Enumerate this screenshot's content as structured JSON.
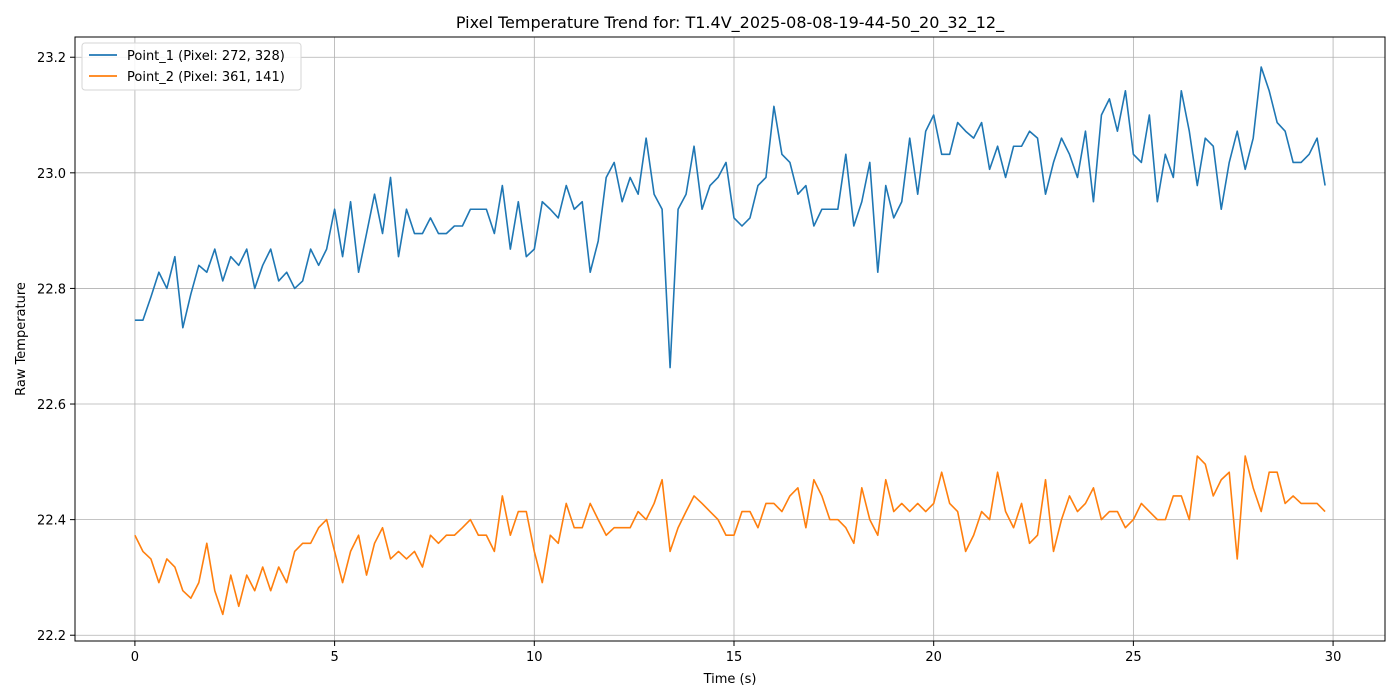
{
  "chart_data": {
    "type": "line",
    "title": "Pixel Temperature Trend for: T1.4V_2025-08-08-19-44-50_20_32_12_",
    "xlabel": "Time (s)",
    "ylabel": "Raw Temperature",
    "xlim": [
      -1.5,
      31.3
    ],
    "ylim": [
      22.19,
      23.235
    ],
    "xticks": [
      0,
      5,
      10,
      15,
      20,
      25,
      30
    ],
    "yticks": [
      22.2,
      22.4,
      22.6,
      22.8,
      23.0,
      23.2
    ],
    "xtick_labels": [
      "0",
      "5",
      "10",
      "15",
      "20",
      "25",
      "30"
    ],
    "ytick_labels": [
      "22.2",
      "22.4",
      "22.6",
      "22.8",
      "23.0",
      "23.2"
    ],
    "grid": true,
    "legend_position": "upper left",
    "series": [
      {
        "name": "Point_1 (Pixel: 272, 328)",
        "color": "#1f77b4",
        "x": [
          0.0,
          0.2,
          0.4,
          0.6,
          0.8,
          1.0,
          1.2,
          1.4,
          1.6,
          1.8,
          2.0,
          2.2,
          2.4,
          2.6,
          2.8,
          3.0,
          3.2,
          3.4,
          3.6,
          3.8,
          4.0,
          4.2,
          4.4,
          4.6,
          4.8,
          5.0,
          5.2,
          5.4,
          5.6,
          5.8,
          6.0,
          6.2,
          6.4,
          6.6,
          6.8,
          7.0,
          7.2,
          7.4,
          7.6,
          7.8,
          8.0,
          8.2,
          8.4,
          8.6,
          8.8,
          9.0,
          9.2,
          9.4,
          9.6,
          9.8,
          10.0,
          10.2,
          10.4,
          10.6,
          10.8,
          11.0,
          11.2,
          11.4,
          11.6,
          11.8,
          12.0,
          12.2,
          12.4,
          12.6,
          12.8,
          13.0,
          13.2,
          13.4,
          13.6,
          13.8,
          14.0,
          14.2,
          14.4,
          14.6,
          14.8,
          15.0,
          15.2,
          15.4,
          15.6,
          15.8,
          16.0,
          16.2,
          16.4,
          16.6,
          16.8,
          17.0,
          17.2,
          17.4,
          17.6,
          17.8,
          18.0,
          18.2,
          18.4,
          18.6,
          18.8,
          19.0,
          19.2,
          19.4,
          19.6,
          19.8,
          20.0,
          20.2,
          20.4,
          20.6,
          20.8,
          21.0,
          21.2,
          21.4,
          21.6,
          21.8,
          22.0,
          22.2,
          22.4,
          22.6,
          22.8,
          23.0,
          23.2,
          23.4,
          23.6,
          23.8,
          24.0,
          24.2,
          24.4,
          24.6,
          24.8,
          25.0,
          25.2,
          25.4,
          25.6,
          25.8,
          26.0,
          26.2,
          26.4,
          26.6,
          26.8,
          27.0,
          27.2,
          27.4,
          27.6,
          27.8,
          28.0,
          28.2,
          28.4,
          28.6,
          28.8,
          29.0,
          29.2,
          29.4,
          29.6,
          29.8
        ],
        "y": [
          22.745,
          22.745,
          22.785,
          22.828,
          22.8,
          22.855,
          22.732,
          22.79,
          22.84,
          22.828,
          22.868,
          22.813,
          22.855,
          22.84,
          22.868,
          22.8,
          22.84,
          22.868,
          22.813,
          22.828,
          22.8,
          22.813,
          22.868,
          22.84,
          22.868,
          22.937,
          22.855,
          22.95,
          22.828,
          22.895,
          22.963,
          22.895,
          22.992,
          22.855,
          22.937,
          22.895,
          22.895,
          22.922,
          22.895,
          22.895,
          22.908,
          22.908,
          22.937,
          22.937,
          22.937,
          22.895,
          22.978,
          22.868,
          22.95,
          22.855,
          22.868,
          22.95,
          22.937,
          22.922,
          22.978,
          22.937,
          22.95,
          22.828,
          22.882,
          22.992,
          23.018,
          22.95,
          22.992,
          22.963,
          23.06,
          22.963,
          22.937,
          22.663,
          22.937,
          22.963,
          23.046,
          22.937,
          22.978,
          22.992,
          23.018,
          22.922,
          22.908,
          22.922,
          22.978,
          22.992,
          23.115,
          23.032,
          23.018,
          22.963,
          22.978,
          22.908,
          22.937,
          22.937,
          22.937,
          23.032,
          22.908,
          22.95,
          23.018,
          22.828,
          22.978,
          22.922,
          22.95,
          23.06,
          22.963,
          23.072,
          23.1,
          23.032,
          23.032,
          23.087,
          23.072,
          23.06,
          23.087,
          23.006,
          23.046,
          22.992,
          23.046,
          23.046,
          23.072,
          23.06,
          22.963,
          23.018,
          23.06,
          23.032,
          22.992,
          23.072,
          22.95,
          23.1,
          23.128,
          23.072,
          23.142,
          23.032,
          23.018,
          23.1,
          22.95,
          23.032,
          22.992,
          23.142,
          23.072,
          22.978,
          23.06,
          23.046,
          22.937,
          23.018,
          23.072,
          23.006,
          23.06,
          23.183,
          23.142,
          23.087,
          23.072,
          23.018,
          23.018,
          23.032,
          23.06,
          22.978
        ]
      },
      {
        "name": "Point_2 (Pixel: 361, 141)",
        "color": "#ff7f0e",
        "x": [
          0.0,
          0.2,
          0.4,
          0.6,
          0.8,
          1.0,
          1.2,
          1.4,
          1.6,
          1.8,
          2.0,
          2.2,
          2.4,
          2.6,
          2.8,
          3.0,
          3.2,
          3.4,
          3.6,
          3.8,
          4.0,
          4.2,
          4.4,
          4.6,
          4.8,
          5.0,
          5.2,
          5.4,
          5.6,
          5.8,
          6.0,
          6.2,
          6.4,
          6.6,
          6.8,
          7.0,
          7.2,
          7.4,
          7.6,
          7.8,
          8.0,
          8.2,
          8.4,
          8.6,
          8.8,
          9.0,
          9.2,
          9.4,
          9.6,
          9.8,
          10.0,
          10.2,
          10.4,
          10.6,
          10.8,
          11.0,
          11.2,
          11.4,
          11.6,
          11.8,
          12.0,
          12.2,
          12.4,
          12.6,
          12.8,
          13.0,
          13.2,
          13.4,
          13.6,
          13.8,
          14.0,
          14.2,
          14.4,
          14.6,
          14.8,
          15.0,
          15.2,
          15.4,
          15.6,
          15.8,
          16.0,
          16.2,
          16.4,
          16.6,
          16.8,
          17.0,
          17.2,
          17.4,
          17.6,
          17.8,
          18.0,
          18.2,
          18.4,
          18.6,
          18.8,
          19.0,
          19.2,
          19.4,
          19.6,
          19.8,
          20.0,
          20.2,
          20.4,
          20.6,
          20.8,
          21.0,
          21.2,
          21.4,
          21.6,
          21.8,
          22.0,
          22.2,
          22.4,
          22.6,
          22.8,
          23.0,
          23.2,
          23.4,
          23.6,
          23.8,
          24.0,
          24.2,
          24.4,
          24.6,
          24.8,
          25.0,
          25.2,
          25.4,
          25.6,
          25.8,
          26.0,
          26.2,
          26.4,
          26.6,
          26.8,
          27.0,
          27.2,
          27.4,
          27.6,
          27.8,
          28.0,
          28.2,
          28.4,
          28.6,
          28.8,
          29.0,
          29.2,
          29.4,
          29.6,
          29.8
        ],
        "y": [
          22.373,
          22.345,
          22.332,
          22.291,
          22.332,
          22.318,
          22.277,
          22.264,
          22.291,
          22.359,
          22.277,
          22.236,
          22.304,
          22.25,
          22.304,
          22.277,
          22.318,
          22.277,
          22.318,
          22.291,
          22.345,
          22.359,
          22.359,
          22.386,
          22.4,
          22.345,
          22.291,
          22.345,
          22.373,
          22.304,
          22.359,
          22.386,
          22.332,
          22.345,
          22.332,
          22.345,
          22.318,
          22.373,
          22.359,
          22.373,
          22.373,
          22.386,
          22.4,
          22.373,
          22.373,
          22.345,
          22.441,
          22.373,
          22.414,
          22.414,
          22.345,
          22.291,
          22.373,
          22.359,
          22.428,
          22.386,
          22.386,
          22.428,
          22.4,
          22.373,
          22.386,
          22.386,
          22.386,
          22.414,
          22.4,
          22.428,
          22.469,
          22.345,
          22.386,
          22.414,
          22.441,
          22.428,
          22.414,
          22.4,
          22.373,
          22.373,
          22.414,
          22.414,
          22.386,
          22.428,
          22.428,
          22.414,
          22.441,
          22.455,
          22.386,
          22.469,
          22.441,
          22.4,
          22.4,
          22.386,
          22.359,
          22.455,
          22.4,
          22.373,
          22.469,
          22.414,
          22.428,
          22.414,
          22.428,
          22.414,
          22.428,
          22.482,
          22.428,
          22.414,
          22.345,
          22.373,
          22.414,
          22.4,
          22.482,
          22.414,
          22.386,
          22.428,
          22.359,
          22.373,
          22.469,
          22.345,
          22.4,
          22.441,
          22.414,
          22.428,
          22.455,
          22.4,
          22.414,
          22.414,
          22.386,
          22.4,
          22.428,
          22.414,
          22.4,
          22.4,
          22.441,
          22.441,
          22.4,
          22.51,
          22.496,
          22.441,
          22.469,
          22.482,
          22.332,
          22.51,
          22.455,
          22.414,
          22.482,
          22.482,
          22.428,
          22.441,
          22.428,
          22.428,
          22.428,
          22.414
        ]
      }
    ]
  }
}
